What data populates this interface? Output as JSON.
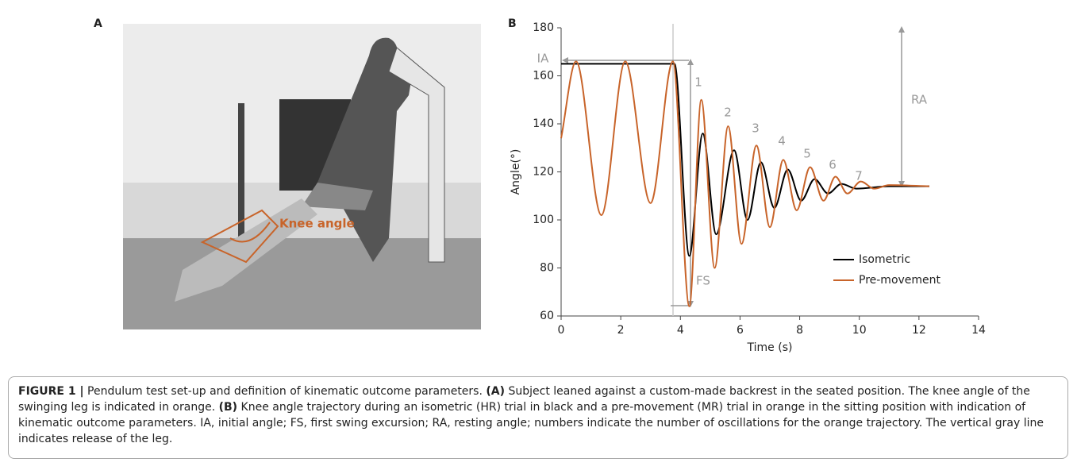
{
  "panel_a": {
    "label": "A",
    "annotation": "Knee angle"
  },
  "chart_data": {
    "type": "line",
    "panel_label": "B",
    "x_label": "Time (s)",
    "y_label": "Angle(°)",
    "xlim": [
      0,
      14
    ],
    "xticks": [
      0,
      2,
      4,
      6,
      8,
      10,
      12,
      14
    ],
    "ylim": [
      60,
      180
    ],
    "yticks": [
      60,
      80,
      100,
      120,
      140,
      160,
      180
    ],
    "series": [
      {
        "name": "Isometric",
        "color": "#000000",
        "x": [
          0,
          3.8,
          4.3,
          4.75,
          5.2,
          5.8,
          6.25,
          6.7,
          7.15,
          7.6,
          8.05,
          8.5,
          8.95,
          9.4,
          9.9,
          11,
          12.35
        ],
        "values": [
          165,
          165,
          85,
          136,
          94,
          129,
          100,
          124,
          105,
          121,
          108,
          117,
          111,
          115,
          113,
          114,
          114
        ]
      },
      {
        "name": "Pre-movement",
        "color": "#c8642a",
        "x": [
          0,
          0.5,
          1.35,
          2.15,
          3.0,
          3.75,
          4.3,
          4.7,
          5.15,
          5.6,
          6.05,
          6.55,
          7.0,
          7.45,
          7.9,
          8.35,
          8.8,
          9.2,
          9.6,
          10.05,
          10.5,
          11,
          12.35
        ],
        "values": [
          134,
          166,
          102,
          166,
          107,
          166,
          64,
          150,
          80,
          139,
          90,
          131,
          97,
          125,
          104,
          122,
          108,
          118,
          111,
          116,
          113,
          114.5,
          114
        ]
      }
    ],
    "annotations": [
      "IA",
      "FS",
      "RA",
      "1",
      "2",
      "3",
      "4",
      "5",
      "6",
      "7"
    ]
  },
  "caption": {
    "label": "FIGURE 1 |",
    "text_1": " Pendulum test set-up and definition of kinematic outcome parameters. ",
    "a_label": "(A)",
    "text_2": " Subject leaned against a custom-made backrest in the seated position. The knee angle of the swinging leg is indicated in orange. ",
    "b_label": "(B)",
    "text_3": " Knee angle trajectory during an isometric (HR) trial in black and a pre-movement (MR) trial in orange in the sitting position with indication of kinematic outcome parameters. IA, initial angle; FS, first swing excursion; RA, resting angle; numbers indicate the number of oscillations for the orange trajectory. The vertical gray line indicates release of the leg."
  }
}
